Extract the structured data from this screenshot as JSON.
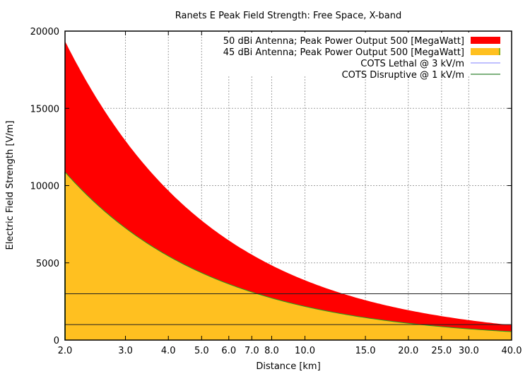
{
  "chart_data": {
    "type": "area",
    "title": "Ranets E Peak Field Strength: Free Space, X-band",
    "xlabel": "Distance [km]",
    "ylabel": "Electric Field Strength [V/m]",
    "xscale": "log",
    "xlim": [
      2,
      40
    ],
    "ylim": [
      0,
      20000
    ],
    "grid": true,
    "legend_position": "top-right",
    "x_ticks": [
      2,
      3,
      4,
      5,
      6,
      7,
      8,
      10,
      15,
      20,
      25,
      30,
      40
    ],
    "x_tick_labels": [
      "2.0",
      "3.0",
      "4.0",
      "5.0",
      "6.0",
      "7.0",
      "8.0",
      "10.0",
      "15.0",
      "20.0",
      "25.0",
      "30.0",
      "40.0"
    ],
    "y_ticks": [
      0,
      5000,
      10000,
      15000,
      20000
    ],
    "y_tick_labels": [
      "0",
      "5000",
      "10000",
      "15000",
      "20000"
    ],
    "x": [
      2,
      3,
      4,
      5,
      6,
      7,
      8,
      10,
      15,
      20,
      25,
      30,
      40
    ],
    "series": [
      {
        "name": "50 dBi Antenna; Peak Power Output 500 [MegaWatt]",
        "kind": "area",
        "color": "#ff0000",
        "values": [
          19350,
          12900,
          9675,
          7740,
          6450,
          5529,
          4838,
          3870,
          2580,
          1935,
          1548,
          1290,
          968
        ]
      },
      {
        "name": "45 dBi Antenna; Peak Power Output 500 [MegaWatt]",
        "kind": "area",
        "color": "#ffc020",
        "edge_color": "#20a020",
        "values": [
          10880,
          7253,
          5440,
          4352,
          3627,
          3109,
          2720,
          2176,
          1451,
          1088,
          870,
          725,
          544
        ]
      },
      {
        "name": "COTS Lethal @ 3 kV/m",
        "kind": "hline",
        "value": 3000,
        "color": "#8080ff"
      },
      {
        "name": "COTS Disruptive @ 1 kV/m",
        "kind": "hline",
        "value": 1000,
        "color": "#006400"
      }
    ]
  }
}
